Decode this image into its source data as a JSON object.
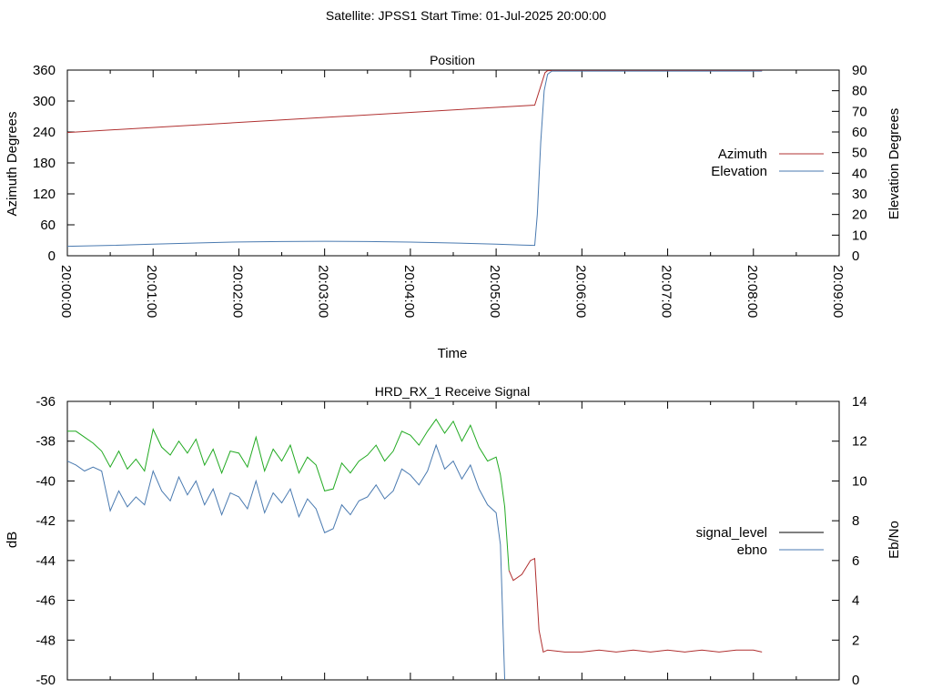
{
  "header": "Satellite: JPSS1    Start Time: 01-Jul-2025 20:00:00",
  "chart_data": [
    {
      "type": "line",
      "title": "Position",
      "xlabel": "Time",
      "ylabel": "Azimuth Degrees",
      "y2label": "Elevation Degrees",
      "xlim": [
        0,
        9
      ],
      "ylim": [
        0,
        360
      ],
      "y2lim": [
        0,
        90
      ],
      "xticks": [
        "20:00:00",
        "20:01:00",
        "20:02:00",
        "20:03:00",
        "20:04:00",
        "20:05:00",
        "20:06:00",
        "20:07:00",
        "20:08:00",
        "20:09:00"
      ],
      "yticks": [
        0,
        60,
        120,
        180,
        240,
        300,
        360
      ],
      "y2ticks": [
        0,
        10,
        20,
        30,
        40,
        50,
        60,
        70,
        80,
        90
      ],
      "legend_position": "right",
      "series": [
        {
          "name": "Azimuth",
          "axis": "left",
          "color": "#b03030",
          "x": [
            0,
            5.45,
            5.57,
            5.6,
            8.1
          ],
          "y": [
            239,
            292,
            355,
            359,
            359
          ]
        },
        {
          "name": "Elevation",
          "axis": "right",
          "color": "#4a7ab0",
          "x": [
            0,
            0.5,
            1.0,
            1.5,
            2.0,
            2.5,
            3.0,
            3.5,
            4.0,
            4.5,
            5.0,
            5.3,
            5.45,
            5.48,
            5.52,
            5.56,
            5.6,
            5.65,
            8.1
          ],
          "y": [
            4.6,
            5.0,
            5.6,
            6.2,
            6.7,
            6.9,
            7.0,
            6.9,
            6.6,
            6.2,
            5.6,
            5.2,
            5.0,
            20,
            55,
            80,
            88,
            89.5,
            89.5
          ]
        }
      ]
    },
    {
      "type": "line",
      "title": "HRD_RX_1 Receive Signal",
      "ylabel": "dB",
      "y2label": "Eb/No",
      "xlim": [
        0,
        9
      ],
      "ylim": [
        -50,
        -36
      ],
      "y2lim": [
        0,
        14
      ],
      "yticks": [
        -50,
        -48,
        -46,
        -44,
        -42,
        -40,
        -38,
        -36
      ],
      "y2ticks": [
        0,
        2,
        4,
        6,
        8,
        10,
        12,
        14
      ],
      "legend_position": "right",
      "series": [
        {
          "name": "signal_level",
          "axis": "left",
          "color": "#000000",
          "line_colors": [
            "#22aa22",
            "#b03030"
          ],
          "x": [
            0,
            0.1,
            0.2,
            0.3,
            0.4,
            0.5,
            0.6,
            0.7,
            0.8,
            0.9,
            1.0,
            1.1,
            1.2,
            1.3,
            1.4,
            1.5,
            1.6,
            1.7,
            1.8,
            1.9,
            2.0,
            2.1,
            2.2,
            2.3,
            2.4,
            2.5,
            2.6,
            2.7,
            2.8,
            2.9,
            3.0,
            3.1,
            3.2,
            3.3,
            3.4,
            3.5,
            3.6,
            3.7,
            3.8,
            3.9,
            4.0,
            4.1,
            4.2,
            4.3,
            4.4,
            4.5,
            4.6,
            4.7,
            4.8,
            4.9,
            5.0,
            5.05,
            5.1,
            5.15,
            5.2,
            5.3,
            5.4,
            5.45,
            5.5,
            5.55,
            5.6,
            5.8,
            6.0,
            6.2,
            6.4,
            6.6,
            6.8,
            7.0,
            7.2,
            7.4,
            7.6,
            7.8,
            8.0,
            8.1
          ],
          "y": [
            -37.5,
            -37.5,
            -37.8,
            -38.1,
            -38.5,
            -39.3,
            -38.5,
            -39.4,
            -38.9,
            -39.5,
            -37.4,
            -38.3,
            -38.7,
            -38.0,
            -38.6,
            -37.9,
            -39.2,
            -38.4,
            -39.6,
            -38.5,
            -38.6,
            -39.3,
            -37.8,
            -39.5,
            -38.4,
            -39.0,
            -38.2,
            -39.6,
            -38.8,
            -39.2,
            -40.5,
            -40.4,
            -39.1,
            -39.6,
            -39.0,
            -38.7,
            -38.2,
            -39.0,
            -38.5,
            -37.5,
            -37.7,
            -38.2,
            -37.5,
            -36.9,
            -37.6,
            -37.0,
            -38.0,
            -37.2,
            -38.3,
            -39.0,
            -38.8,
            -39.7,
            -41.3,
            -44.5,
            -45.0,
            -44.7,
            -44.0,
            -43.9,
            -47.5,
            -48.6,
            -48.5,
            -48.6,
            -48.6,
            -48.5,
            -48.6,
            -48.5,
            -48.6,
            -48.5,
            -48.6,
            -48.5,
            -48.6,
            -48.5,
            -48.5,
            -48.6
          ]
        },
        {
          "name": "ebno",
          "axis": "right",
          "color": "#4a7ab0",
          "x": [
            0,
            0.1,
            0.2,
            0.3,
            0.4,
            0.5,
            0.6,
            0.7,
            0.8,
            0.9,
            1.0,
            1.1,
            1.2,
            1.3,
            1.4,
            1.5,
            1.6,
            1.7,
            1.8,
            1.9,
            2.0,
            2.1,
            2.2,
            2.3,
            2.4,
            2.5,
            2.6,
            2.7,
            2.8,
            2.9,
            3.0,
            3.1,
            3.2,
            3.3,
            3.4,
            3.5,
            3.6,
            3.7,
            3.8,
            3.9,
            4.0,
            4.1,
            4.2,
            4.3,
            4.4,
            4.5,
            4.6,
            4.7,
            4.8,
            4.9,
            5.0,
            5.05,
            5.1
          ],
          "y": [
            11.0,
            10.8,
            10.5,
            10.7,
            10.5,
            8.5,
            9.5,
            8.7,
            9.2,
            8.8,
            10.5,
            9.5,
            9.0,
            10.2,
            9.3,
            10.0,
            8.8,
            9.6,
            8.3,
            9.4,
            9.2,
            8.6,
            10.0,
            8.4,
            9.4,
            8.9,
            9.6,
            8.2,
            9.1,
            8.6,
            7.4,
            7.6,
            8.8,
            8.3,
            9.0,
            9.2,
            9.8,
            9.1,
            9.5,
            10.6,
            10.3,
            9.8,
            10.5,
            11.8,
            10.6,
            11.0,
            10.1,
            10.8,
            9.6,
            8.8,
            8.4,
            6.8,
            0
          ]
        }
      ]
    }
  ]
}
